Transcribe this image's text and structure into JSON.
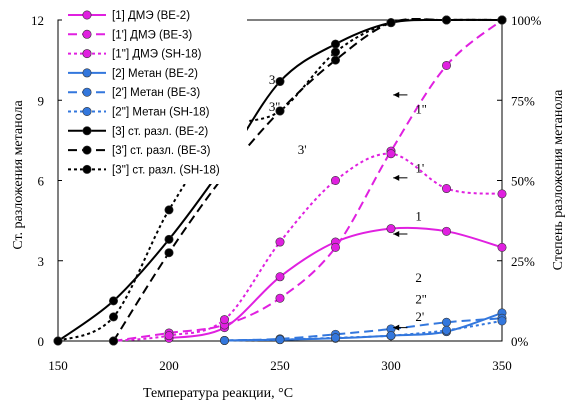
{
  "chart_data": {
    "type": "line",
    "xlabel": "Температура реакции, °C",
    "ylabel_left": "Ст. разложения метанола",
    "ylabel_right": "Степень разложения метанола",
    "x_ticks": [
      150,
      200,
      250,
      300,
      350
    ],
    "y_left_ticks": [
      "0",
      "3",
      "6",
      "9",
      "12"
    ],
    "y_right_ticks": [
      "0%",
      "25%",
      "50%",
      "75%",
      "100%"
    ],
    "xlim": [
      150,
      350
    ],
    "ylim_left": [
      0,
      12
    ],
    "ylim_right": [
      0,
      100
    ],
    "series": [
      {
        "name": "[1] ДМЭ (BE-2)",
        "color": "#e020e0",
        "line": "solid",
        "marker": "circle",
        "x": [
          200,
          225,
          250,
          275,
          300,
          325,
          350
        ],
        "y": [
          0.1,
          0.5,
          2.4,
          3.7,
          4.2,
          4.1,
          3.5
        ]
      },
      {
        "name": "[1'] ДМЭ (BE-3)",
        "color": "#e020e0",
        "line": "dashed",
        "marker": "circle",
        "x": [
          175,
          200,
          225,
          250,
          275,
          300,
          325,
          350
        ],
        "y": [
          0.0,
          0.3,
          0.6,
          1.6,
          3.5,
          7.1,
          10.3,
          12.0
        ]
      },
      {
        "name": "[1''] ДМЭ (SH-18)",
        "color": "#e020e0",
        "line": "dotted",
        "marker": "circle",
        "x": [
          175,
          200,
          225,
          250,
          275,
          300,
          325,
          350
        ],
        "y": [
          0.0,
          0.2,
          0.8,
          3.7,
          6.0,
          7.0,
          5.7,
          5.5
        ]
      },
      {
        "name": "[2] Метан (BE-2)",
        "color": "#3377dd",
        "line": "solid",
        "marker": "circle",
        "x": [
          225,
          250,
          275,
          300,
          325,
          350
        ],
        "y": [
          0.02,
          0.05,
          0.1,
          0.2,
          0.35,
          1.05
        ]
      },
      {
        "name": "[2'] Метан (BE-3)",
        "color": "#3377dd",
        "line": "dashed",
        "marker": "circle",
        "x": [
          225,
          250,
          275,
          300,
          325,
          350
        ],
        "y": [
          0.02,
          0.08,
          0.25,
          0.45,
          0.7,
          0.85
        ]
      },
      {
        "name": "[2''] Метан (SH-18)",
        "color": "#3377dd",
        "line": "dotted",
        "marker": "circle",
        "x": [
          225,
          250,
          275,
          300,
          325,
          350
        ],
        "y": [
          0.02,
          0.05,
          0.12,
          0.2,
          0.4,
          0.75
        ]
      },
      {
        "name": "[3] ст. разл. (BE-2)",
        "color": "#000000",
        "line": "solid",
        "marker": "circle",
        "x": [
          150,
          175,
          200,
          225,
          250,
          275,
          300,
          325,
          350
        ],
        "y": [
          0.0,
          1.5,
          3.8,
          6.6,
          9.7,
          11.1,
          11.9,
          12.0,
          12.0
        ]
      },
      {
        "name": "[3'] ст. разл. (BE-3)",
        "color": "#000000",
        "line": "dashed",
        "marker": "circle",
        "x": [
          175,
          200,
          225,
          250,
          275,
          300,
          325,
          350
        ],
        "y": [
          0.0,
          3.3,
          6.2,
          8.6,
          10.5,
          11.9,
          12.0,
          12.0
        ]
      },
      {
        "name": "[3''] ст. разл. (SH-18)",
        "color": "#000000",
        "line": "dotted",
        "marker": "circle",
        "x": [
          150,
          175,
          200,
          225,
          250,
          275,
          300,
          325,
          350
        ],
        "y": [
          0.0,
          0.9,
          4.9,
          7.8,
          8.6,
          10.8,
          11.9,
          12.0,
          12.0
        ]
      }
    ],
    "annotations": [
      {
        "text": "3",
        "x": 245,
        "y": 9.6
      },
      {
        "text": "3''",
        "x": 245,
        "y": 8.6
      },
      {
        "text": "3'",
        "x": 258,
        "y": 7.0
      },
      {
        "text": "1''",
        "x": 311,
        "y": 8.5,
        "arrow_to_x": 301,
        "arrow_to_y": 9.2
      },
      {
        "text": "1'",
        "x": 311,
        "y": 6.3,
        "arrow_to_x": 301,
        "arrow_to_y": 6.1
      },
      {
        "text": "1",
        "x": 311,
        "y": 4.5,
        "arrow_to_x": 301,
        "arrow_to_y": 4.0
      },
      {
        "text": "2",
        "x": 311,
        "y": 2.2
      },
      {
        "text": "2''",
        "x": 311,
        "y": 1.4
      },
      {
        "text": "2'",
        "x": 311,
        "y": 0.75,
        "arrow_to_x": 301,
        "arrow_to_y": 0.5
      }
    ]
  }
}
